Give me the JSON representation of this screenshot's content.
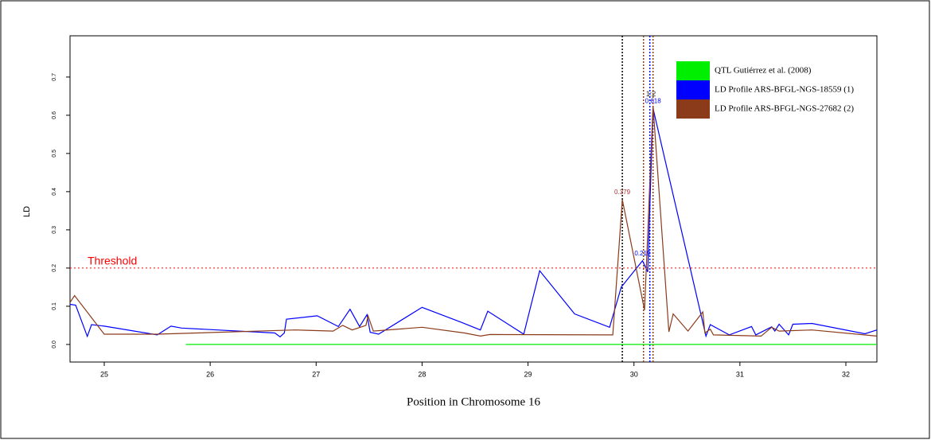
{
  "chart_data": {
    "type": "line",
    "xlabel": "Position in Chromosome 16",
    "ylabel": "LD",
    "xlim": [
      24.677,
      32.293
    ],
    "ylim": [
      -0.046,
      0.808
    ],
    "xticks": [
      25,
      26,
      27,
      28,
      29,
      30,
      31,
      32
    ],
    "yticks": [
      {
        "value": 0,
        "label": "0.0"
      },
      {
        "value": 0.1,
        "label": "0.1"
      },
      {
        "value": 0.2,
        "label": "0.2"
      },
      {
        "value": 0.3,
        "label": "0.3"
      },
      {
        "value": 0.4,
        "label": "0.4"
      },
      {
        "value": 0.5,
        "label": "0.5"
      },
      {
        "value": 0.6,
        "label": "0.6"
      },
      {
        "value": 0.7,
        "label": "0.7"
      }
    ],
    "legend": "top-right",
    "threshold": {
      "value": 0.2,
      "label": "Threshold",
      "color": "#ff0000"
    },
    "series": [
      {
        "name": "QTL Gutiérrez et al. (2008)",
        "color": "#00ee00",
        "x": [
          25.77,
          32.293
        ],
        "values": [
          0,
          0
        ]
      },
      {
        "name": "LD Profile ARS-BFGL-NGS-18559 (1)",
        "color": "#0000ff",
        "x": [
          24.677,
          24.73,
          24.84,
          24.88,
          25.0,
          25.5,
          25.63,
          25.73,
          26.61,
          26.66,
          26.7,
          26.72,
          27.01,
          27.21,
          27.32,
          27.41,
          27.48,
          27.51,
          27.59,
          28.0,
          28.37,
          28.55,
          28.62,
          28.96,
          29.11,
          29.44,
          29.77,
          29.88,
          30.08,
          30.13,
          30.18,
          30.68,
          30.72,
          30.9,
          31.11,
          31.15,
          31.3,
          31.33,
          31.37,
          31.46,
          31.5,
          31.68,
          32.18,
          32.293
        ],
        "values": [
          0.105,
          0.103,
          0.021,
          0.052,
          0.048,
          0.025,
          0.048,
          0.043,
          0.03,
          0.02,
          0.03,
          0.066,
          0.075,
          0.047,
          0.092,
          0.047,
          0.078,
          0.032,
          0.027,
          0.097,
          0.058,
          0.038,
          0.087,
          0.027,
          0.193,
          0.08,
          0.045,
          0.15,
          0.219,
          0.19,
          0.618,
          0.022,
          0.052,
          0.025,
          0.047,
          0.025,
          0.046,
          0.035,
          0.053,
          0.025,
          0.053,
          0.055,
          0.028,
          0.038
        ]
      },
      {
        "name": "LD Profile ARS-BFGL-NGS-27682 (2)",
        "color": "#8b3a1a",
        "x": [
          24.677,
          24.72,
          25.0,
          25.5,
          26.8,
          27.16,
          27.25,
          27.34,
          27.47,
          27.49,
          27.54,
          28.0,
          28.4,
          28.55,
          28.64,
          29.8,
          29.89,
          30.1,
          30.18,
          30.33,
          30.37,
          30.51,
          30.65,
          30.67,
          30.72,
          30.75,
          31.2,
          31.3,
          31.37,
          31.68,
          32.293
        ],
        "values": [
          0.11,
          0.128,
          0.027,
          0.027,
          0.038,
          0.035,
          0.05,
          0.038,
          0.05,
          0.075,
          0.035,
          0.045,
          0.03,
          0.022,
          0.026,
          0.025,
          0.379,
          0.09,
          0.625,
          0.033,
          0.08,
          0.035,
          0.085,
          0.03,
          0.04,
          0.025,
          0.022,
          0.045,
          0.035,
          0.038,
          0.022
        ]
      }
    ],
    "vlines": [
      {
        "x": 29.89,
        "color": "#000000"
      },
      {
        "x": 30.09,
        "color": "#8b3a1a"
      },
      {
        "x": 30.15,
        "color": "#0000ff"
      },
      {
        "x": 30.18,
        "color": "#8b3a1a"
      }
    ],
    "annotations": [
      {
        "x": 29.89,
        "y": 0.379,
        "color": "#b03030"
      },
      {
        "x": 30.08,
        "y": 0.219,
        "color": "#0000ff"
      },
      {
        "x": 30.18,
        "y": 0.618,
        "color": "#0000ff"
      }
    ],
    "marker_label": {
      "text": "1:2",
      "x": 30.16,
      "y": 0.655
    }
  }
}
